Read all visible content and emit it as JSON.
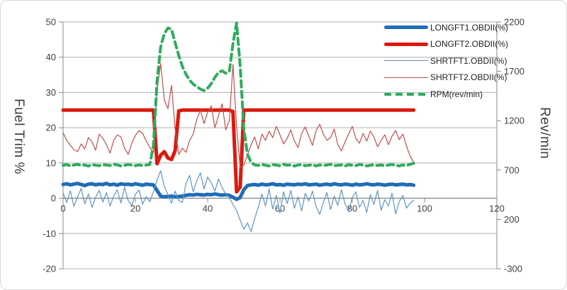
{
  "chart_data": {
    "type": "line",
    "title": "",
    "grid": true,
    "legend_position": "inside-top-right",
    "x_axis": {
      "label": "",
      "min": 0,
      "max": 120,
      "ticks": [
        0,
        20,
        40,
        60,
        80,
        100,
        120
      ]
    },
    "y_left": {
      "label": "Fuel Trim %",
      "min": -20,
      "max": 50,
      "ticks": [
        50,
        40,
        30,
        20,
        10,
        0,
        -10,
        -20
      ]
    },
    "y_right": {
      "label": "Rev/min",
      "min": -300,
      "max": 2200,
      "ticks": [
        2200,
        1700,
        1200,
        700,
        200,
        -300
      ]
    },
    "x_start": 0,
    "x_step": 1,
    "colors": {
      "longft1": "#1f6db6",
      "longft2": "#da1a10",
      "shrtft1": "#5e94c5",
      "shrtft2": "#c0504d",
      "rpm": "#2eac5c",
      "grid": "#b0b0b0",
      "axis": "#8a8a8a",
      "tick_text": "#404040"
    },
    "series": [
      {
        "name": "LONGFT1.OBDII(%)",
        "axis": "left",
        "style": "thick",
        "color": "#1f6db6",
        "width": 5,
        "values": [
          3.9,
          4.1,
          3.8,
          4.0,
          4.2,
          3.9,
          3.6,
          4.0,
          4.1,
          3.8,
          4.0,
          3.9,
          4.2,
          3.8,
          4.0,
          3.7,
          4.1,
          3.9,
          4.0,
          3.8,
          4.1,
          3.9,
          3.7,
          4.0,
          3.9,
          3.8,
          2.2,
          0.6,
          0.4,
          0.5,
          0.6,
          0.4,
          0.5,
          0.6,
          0.8,
          1.0,
          0.9,
          1.1,
          1.0,
          0.9,
          1.1,
          1.0,
          1.2,
          1.0,
          0.9,
          1.0,
          0.8,
          0.3,
          -0.3,
          0.2,
          2.4,
          3.6,
          3.8,
          3.9,
          3.7,
          4.0,
          3.8,
          3.9,
          4.1,
          3.8,
          3.9,
          3.7,
          4.0,
          3.9,
          3.8,
          4.0,
          3.9,
          4.1,
          3.8,
          3.9,
          4.0,
          3.7,
          3.9,
          4.0,
          3.8,
          4.1,
          3.9,
          3.8,
          4.0,
          3.9,
          3.7,
          4.0,
          3.8,
          3.9,
          4.1,
          3.9,
          3.8,
          4.0,
          3.9,
          3.7,
          3.9,
          4.0,
          3.8,
          3.9,
          4.0,
          3.8,
          3.9,
          3.7
        ]
      },
      {
        "name": "LONGFT2.OBDII(%)",
        "axis": "left",
        "style": "thick",
        "color": "#da1a10",
        "width": 5,
        "values": [
          25,
          25,
          25,
          25,
          25,
          25,
          25,
          25,
          25,
          25,
          25,
          25,
          25,
          25,
          25,
          25,
          25,
          25,
          25,
          25,
          25,
          25,
          25,
          25,
          25,
          25,
          9.8,
          12.2,
          13.2,
          11.4,
          11.0,
          13.5,
          24.8,
          25,
          25,
          25,
          25,
          25,
          25,
          25,
          25,
          25,
          25,
          25,
          25,
          25,
          25,
          24.6,
          1.8,
          3.2,
          25,
          25,
          25,
          25,
          25,
          25,
          25,
          25,
          25,
          25,
          25,
          25,
          25,
          25,
          25,
          25,
          25,
          25,
          25,
          25,
          25,
          25,
          25,
          25,
          25,
          25,
          25,
          25,
          25,
          25,
          25,
          25,
          25,
          25,
          25,
          25,
          25,
          25,
          25,
          25,
          25,
          25,
          25,
          25,
          25,
          25,
          25,
          25
        ]
      },
      {
        "name": "SHRTFT1.OBDII(%)",
        "axis": "left",
        "style": "thin",
        "color": "#5e94c5",
        "width": 1.2,
        "values": [
          1.5,
          -1.2,
          2.1,
          -2.3,
          0.4,
          2.8,
          -1.6,
          1.2,
          -2.6,
          0.3,
          2.2,
          -1.1,
          1.6,
          -2.2,
          0.6,
          2.4,
          -1.4,
          3.1,
          -0.6,
          -2.1,
          1.1,
          2.3,
          -1.7,
          0.5,
          -1.0,
          1.8,
          5.2,
          7.8,
          3.4,
          1.0,
          -1.4,
          2.0,
          -0.6,
          -1.2,
          4.2,
          6.5,
          1.8,
          5.0,
          7.2,
          2.6,
          6.0,
          4.4,
          2.0,
          5.5,
          3.0,
          1.2,
          0.2,
          -1.8,
          -3.5,
          -6.2,
          -8.8,
          -7.0,
          -9.4,
          -5.8,
          -2.6,
          1.2,
          -2.2,
          2.6,
          -3.1,
          0.8,
          -4.2,
          1.8,
          -1.5,
          2.2,
          -2.8,
          0.4,
          -3.6,
          1.4,
          -0.8,
          2.0,
          -2.4,
          -4.6,
          -1.2,
          1.6,
          -3.2,
          0.6,
          -2.0,
          2.4,
          -1.6,
          -3.8,
          0.2,
          1.8,
          -2.6,
          -0.6,
          -4.0,
          1.0,
          -1.8,
          2.2,
          -3.4,
          -0.4,
          -2.2,
          1.4,
          -4.4,
          -1.0,
          0.8,
          -2.8,
          -1.4,
          -0.6
        ]
      },
      {
        "name": "SHRTFT2.OBDII(%)",
        "axis": "left",
        "style": "thin",
        "color": "#c0504d",
        "width": 1.2,
        "values": [
          18.6,
          16.4,
          15.0,
          13.8,
          13.2,
          15.4,
          14.0,
          17.2,
          16.0,
          13.6,
          18.2,
          17.0,
          15.2,
          12.8,
          16.4,
          18.0,
          17.4,
          14.2,
          12.4,
          15.6,
          17.8,
          19.2,
          18.4,
          16.2,
          14.4,
          13.0,
          30.5,
          38.2,
          28.0,
          25.4,
          32.0,
          19.6,
          12.4,
          14.2,
          13.0,
          16.4,
          18.2,
          22.4,
          25.0,
          21.2,
          24.4,
          26.2,
          20.0,
          23.4,
          26.8,
          19.4,
          22.0,
          38.0,
          20.4,
          8.6,
          9.4,
          12.2,
          15.2,
          17.4,
          14.0,
          18.2,
          16.4,
          19.0,
          17.2,
          20.4,
          18.0,
          15.4,
          17.0,
          19.4,
          16.2,
          14.4,
          18.4,
          20.2,
          17.6,
          15.0,
          19.2,
          21.0,
          18.2,
          16.4,
          17.2,
          19.6,
          15.2,
          13.4,
          16.0,
          18.2,
          20.4,
          17.0,
          15.6,
          18.4,
          16.2,
          19.0,
          17.4,
          14.6,
          16.4,
          18.0,
          15.2,
          17.6,
          19.2,
          16.6,
          18.2,
          14.8,
          12.0,
          10.2
        ]
      },
      {
        "name": "RPM(rev/min)",
        "axis": "right",
        "style": "dashed",
        "color": "#2eac5c",
        "width": 4,
        "values": [
          748,
          755,
          742,
          750,
          758,
          745,
          752,
          740,
          756,
          748,
          744,
          754,
          750,
          746,
          758,
          752,
          742,
          748,
          755,
          750,
          744,
          752,
          746,
          750,
          756,
          950,
          1600,
          1950,
          2080,
          2140,
          2125,
          1990,
          1860,
          1750,
          1670,
          1610,
          1570,
          1545,
          1520,
          1505,
          1530,
          1575,
          1640,
          1690,
          1705,
          1680,
          1700,
          1980,
          2190,
          1750,
          1120,
          860,
          780,
          752,
          746,
          756,
          748,
          742,
          754,
          750,
          744,
          758,
          748,
          752,
          740,
          750,
          756,
          744,
          748,
          754,
          742,
          752,
          746,
          750,
          758,
          744,
          748,
          752,
          740,
          754,
          748,
          744,
          756,
          750,
          742,
          748,
          754,
          746,
          752,
          744,
          750,
          756,
          748,
          742,
          752,
          746,
          758,
          768
        ]
      }
    ]
  }
}
